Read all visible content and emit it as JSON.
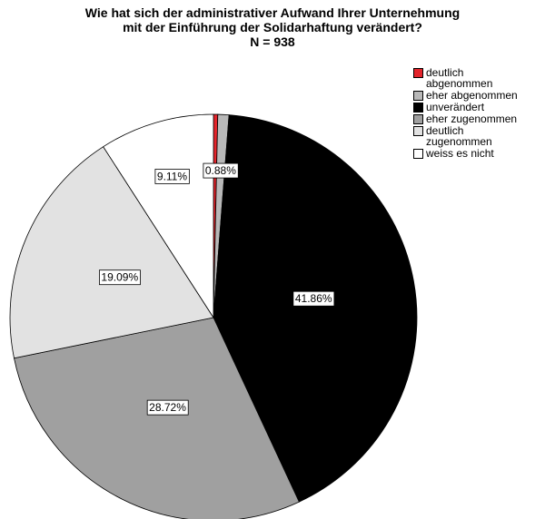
{
  "chart_data": {
    "type": "pie",
    "title": [
      "Wie hat sich der administrativer Aufwand Ihrer Unternehmung",
      "mit der Einführung der Solidarhaftung verändert?"
    ],
    "subtitle": "N = 938",
    "categories": [
      "deutlich abgenommen",
      "eher abgenommen",
      "unverändert",
      "eher zugenommen",
      "deutlich zugenommen",
      "weiss es nicht"
    ],
    "values": [
      0.34,
      0.88,
      41.86,
      28.72,
      19.09,
      9.11
    ],
    "value_labels": [
      null,
      "0.88%",
      "41.86%",
      "28.72%",
      "19.09%",
      "9.11%"
    ],
    "colors": [
      "#e3242b",
      "#b8b8b8",
      "#000000",
      "#a0a0a0",
      "#e2e2e2",
      "#ffffff"
    ],
    "legend": "top-right"
  }
}
